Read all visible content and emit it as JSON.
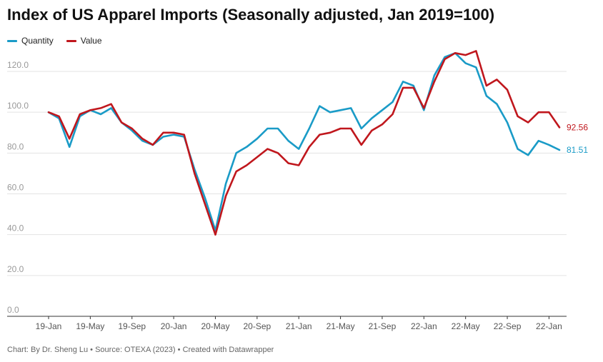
{
  "title": "Index of US Apparel Imports (Seasonally adjusted, Jan 2019=100)",
  "legend": [
    {
      "name": "Quantity",
      "color": "#1a9bc7"
    },
    {
      "name": "Value",
      "color": "#c0171d"
    }
  ],
  "footer": {
    "credit": "Chart: By Dr. Sheng Lu",
    "source": "Source: OTEXA (2023)",
    "tool": "Created with Datawrapper",
    "sep": " • "
  },
  "chart_data": {
    "type": "line",
    "title": "Index of US Apparel Imports (Seasonally adjusted, Jan 2019=100)",
    "xlabel": "",
    "ylabel": "",
    "ylim": [
      0,
      130
    ],
    "y_ticks": [
      "0.0",
      "20.0",
      "40.0",
      "60.0",
      "80.0",
      "100.0",
      "120.0"
    ],
    "y_tick_values": [
      0,
      20,
      40,
      60,
      80,
      100,
      120
    ],
    "x_tick_labels": [
      "19-Jan",
      "19-May",
      "19-Sep",
      "20-Jan",
      "20-May",
      "20-Sep",
      "21-Jan",
      "21-May",
      "21-Sep",
      "22-Jan",
      "22-May",
      "22-Sep",
      "22-Jan"
    ],
    "x_tick_index": [
      0,
      4,
      8,
      12,
      16,
      20,
      24,
      28,
      32,
      36,
      40,
      44,
      48
    ],
    "grid": true,
    "legend_position": "top-left",
    "series": [
      {
        "name": "Quantity",
        "color": "#1a9bc7",
        "end_label": "81.51",
        "values": [
          100,
          97,
          83,
          98,
          101,
          99,
          102,
          95,
          91,
          86,
          84,
          88,
          89,
          88,
          72,
          58,
          42,
          65,
          80,
          83,
          87,
          92,
          92,
          86,
          82,
          92,
          103,
          100,
          101,
          102,
          92,
          97,
          101,
          105,
          115,
          113,
          101,
          118,
          127,
          129,
          124,
          122,
          108,
          104,
          95,
          82,
          79,
          86,
          84,
          81.51
        ]
      },
      {
        "name": "Value",
        "color": "#c0171d",
        "end_label": "92.56",
        "values": [
          100,
          98,
          87,
          99,
          101,
          102,
          104,
          95,
          92,
          87,
          84,
          90,
          90,
          89,
          70,
          55,
          40,
          59,
          71,
          74,
          78,
          82,
          80,
          75,
          74,
          83,
          89,
          90,
          92,
          92,
          84,
          91,
          94,
          99,
          112,
          112,
          102,
          115,
          126,
          129,
          128,
          130,
          113,
          116,
          111,
          98,
          95,
          100,
          100,
          92.56
        ]
      }
    ]
  }
}
